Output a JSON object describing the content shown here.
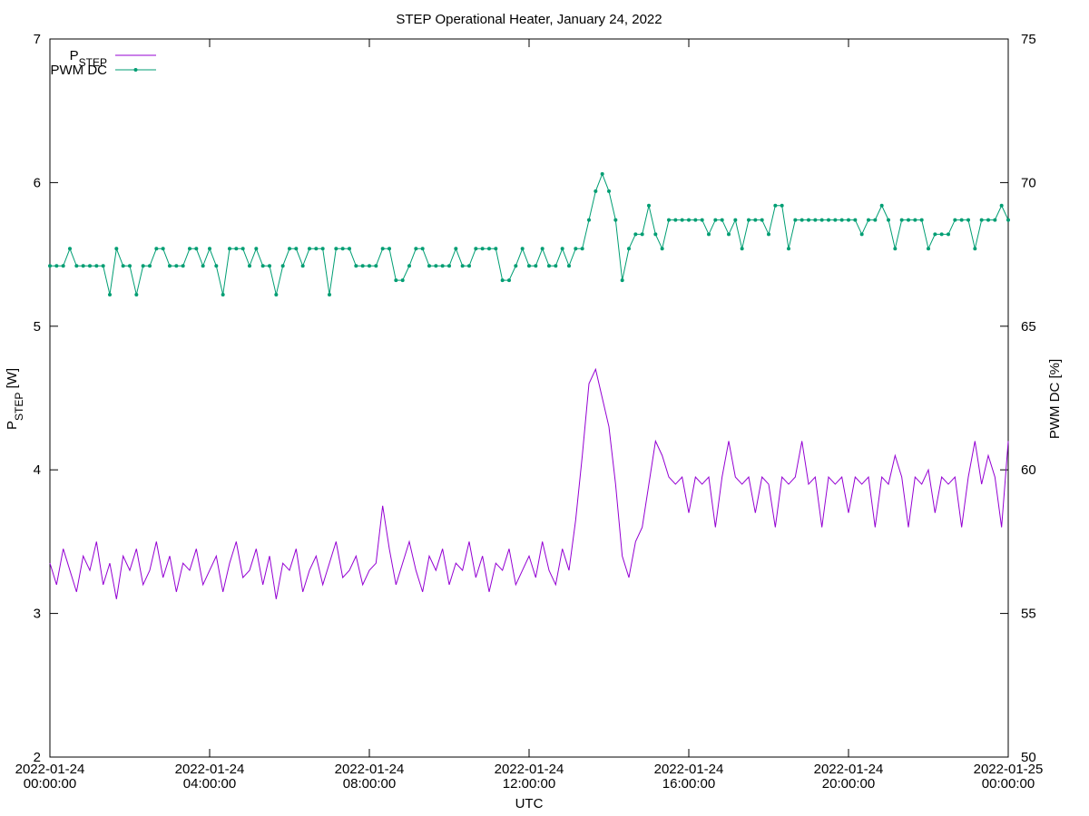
{
  "chart_data": {
    "type": "line",
    "title": "STEP Operational Heater, January 24, 2022",
    "xlabel": "UTC",
    "ylabel": [
      "P",
      "STEP",
      " [W]"
    ],
    "y2label": "PWM DC [%]",
    "x": [
      "2022-01-24 00:00",
      "2022-01-24 00:10",
      "2022-01-24 00:20",
      "2022-01-24 00:30",
      "2022-01-24 00:40",
      "2022-01-24 00:50",
      "2022-01-24 01:00",
      "2022-01-24 01:10",
      "2022-01-24 01:20",
      "2022-01-24 01:30",
      "2022-01-24 01:40",
      "2022-01-24 01:50",
      "2022-01-24 02:00",
      "2022-01-24 02:10",
      "2022-01-24 02:20",
      "2022-01-24 02:30",
      "2022-01-24 02:40",
      "2022-01-24 02:50",
      "2022-01-24 03:00",
      "2022-01-24 03:10",
      "2022-01-24 03:20",
      "2022-01-24 03:30",
      "2022-01-24 03:40",
      "2022-01-24 03:50",
      "2022-01-24 04:00",
      "2022-01-24 04:10",
      "2022-01-24 04:20",
      "2022-01-24 04:30",
      "2022-01-24 04:40",
      "2022-01-24 04:50",
      "2022-01-24 05:00",
      "2022-01-24 05:10",
      "2022-01-24 05:20",
      "2022-01-24 05:30",
      "2022-01-24 05:40",
      "2022-01-24 05:50",
      "2022-01-24 06:00",
      "2022-01-24 06:10",
      "2022-01-24 06:20",
      "2022-01-24 06:30",
      "2022-01-24 06:40",
      "2022-01-24 06:50",
      "2022-01-24 07:00",
      "2022-01-24 07:10",
      "2022-01-24 07:20",
      "2022-01-24 07:30",
      "2022-01-24 07:40",
      "2022-01-24 07:50",
      "2022-01-24 08:00",
      "2022-01-24 08:10",
      "2022-01-24 08:20",
      "2022-01-24 08:30",
      "2022-01-24 08:40",
      "2022-01-24 08:50",
      "2022-01-24 09:00",
      "2022-01-24 09:10",
      "2022-01-24 09:20",
      "2022-01-24 09:30",
      "2022-01-24 09:40",
      "2022-01-24 09:50",
      "2022-01-24 10:00",
      "2022-01-24 10:10",
      "2022-01-24 10:20",
      "2022-01-24 10:30",
      "2022-01-24 10:40",
      "2022-01-24 10:50",
      "2022-01-24 11:00",
      "2022-01-24 11:10",
      "2022-01-24 11:20",
      "2022-01-24 11:30",
      "2022-01-24 11:40",
      "2022-01-24 11:50",
      "2022-01-24 12:00",
      "2022-01-24 12:10",
      "2022-01-24 12:20",
      "2022-01-24 12:30",
      "2022-01-24 12:40",
      "2022-01-24 12:50",
      "2022-01-24 13:00",
      "2022-01-24 13:10",
      "2022-01-24 13:20",
      "2022-01-24 13:30",
      "2022-01-24 13:40",
      "2022-01-24 13:50",
      "2022-01-24 14:00",
      "2022-01-24 14:10",
      "2022-01-24 14:20",
      "2022-01-24 14:30",
      "2022-01-24 14:40",
      "2022-01-24 14:50",
      "2022-01-24 15:00",
      "2022-01-24 15:10",
      "2022-01-24 15:20",
      "2022-01-24 15:30",
      "2022-01-24 15:40",
      "2022-01-24 15:50",
      "2022-01-24 16:00",
      "2022-01-24 16:10",
      "2022-01-24 16:20",
      "2022-01-24 16:30",
      "2022-01-24 16:40",
      "2022-01-24 16:50",
      "2022-01-24 17:00",
      "2022-01-24 17:10",
      "2022-01-24 17:20",
      "2022-01-24 17:30",
      "2022-01-24 17:40",
      "2022-01-24 17:50",
      "2022-01-24 18:00",
      "2022-01-24 18:10",
      "2022-01-24 18:20",
      "2022-01-24 18:30",
      "2022-01-24 18:40",
      "2022-01-24 18:50",
      "2022-01-24 19:00",
      "2022-01-24 19:10",
      "2022-01-24 19:20",
      "2022-01-24 19:30",
      "2022-01-24 19:40",
      "2022-01-24 19:50",
      "2022-01-24 20:00",
      "2022-01-24 20:10",
      "2022-01-24 20:20",
      "2022-01-24 20:30",
      "2022-01-24 20:40",
      "2022-01-24 20:50",
      "2022-01-24 21:00",
      "2022-01-24 21:10",
      "2022-01-24 21:20",
      "2022-01-24 21:30",
      "2022-01-24 21:40",
      "2022-01-24 21:50",
      "2022-01-24 22:00",
      "2022-01-24 22:10",
      "2022-01-24 22:20",
      "2022-01-24 22:30",
      "2022-01-24 22:40",
      "2022-01-24 22:50",
      "2022-01-24 23:00",
      "2022-01-24 23:10",
      "2022-01-24 23:20",
      "2022-01-24 23:30",
      "2022-01-24 23:40",
      "2022-01-24 23:50",
      "2022-01-25 00:00"
    ],
    "series": [
      {
        "name": [
          "P",
          "STEP"
        ],
        "color": "#9400d3",
        "axis": "y",
        "markers": false,
        "values": [
          3.35,
          3.2,
          3.45,
          3.3,
          3.15,
          3.4,
          3.3,
          3.5,
          3.2,
          3.35,
          3.1,
          3.4,
          3.3,
          3.45,
          3.2,
          3.3,
          3.5,
          3.25,
          3.4,
          3.15,
          3.35,
          3.3,
          3.45,
          3.2,
          3.3,
          3.4,
          3.15,
          3.35,
          3.5,
          3.25,
          3.3,
          3.45,
          3.2,
          3.4,
          3.1,
          3.35,
          3.3,
          3.45,
          3.15,
          3.3,
          3.4,
          3.2,
          3.35,
          3.5,
          3.25,
          3.3,
          3.4,
          3.2,
          3.3,
          3.35,
          3.75,
          3.45,
          3.2,
          3.35,
          3.5,
          3.3,
          3.15,
          3.4,
          3.3,
          3.45,
          3.2,
          3.35,
          3.3,
          3.5,
          3.25,
          3.4,
          3.15,
          3.35,
          3.3,
          3.45,
          3.2,
          3.3,
          3.4,
          3.25,
          3.5,
          3.3,
          3.2,
          3.45,
          3.3,
          3.65,
          4.1,
          4.6,
          4.7,
          4.5,
          4.3,
          3.9,
          3.4,
          3.25,
          3.5,
          3.6,
          3.9,
          4.2,
          4.1,
          3.95,
          3.9,
          3.95,
          3.7,
          3.95,
          3.9,
          3.95,
          3.6,
          3.95,
          4.2,
          3.95,
          3.9,
          3.95,
          3.7,
          3.95,
          3.9,
          3.6,
          3.95,
          3.9,
          3.95,
          4.2,
          3.9,
          3.95,
          3.6,
          3.95,
          3.9,
          3.95,
          3.7,
          3.95,
          3.9,
          3.95,
          3.6,
          3.95,
          3.9,
          4.1,
          3.95,
          3.6,
          3.95,
          3.9,
          4.0,
          3.7,
          3.95,
          3.9,
          3.95,
          3.6,
          3.95,
          4.2,
          3.9,
          4.1,
          3.95,
          3.6,
          4.2
        ]
      },
      {
        "name": [
          "PWM DC"
        ],
        "color": "#009e73",
        "axis": "y2",
        "markers": true,
        "values": [
          67.1,
          67.1,
          67.1,
          67.7,
          67.1,
          67.1,
          67.1,
          67.1,
          67.1,
          66.1,
          67.7,
          67.1,
          67.1,
          66.1,
          67.1,
          67.1,
          67.7,
          67.7,
          67.1,
          67.1,
          67.1,
          67.7,
          67.7,
          67.1,
          67.7,
          67.1,
          66.1,
          67.7,
          67.7,
          67.7,
          67.1,
          67.7,
          67.1,
          67.1,
          66.1,
          67.1,
          67.7,
          67.7,
          67.1,
          67.7,
          67.7,
          67.7,
          66.1,
          67.7,
          67.7,
          67.7,
          67.1,
          67.1,
          67.1,
          67.1,
          67.7,
          67.7,
          66.6,
          66.6,
          67.1,
          67.7,
          67.7,
          67.1,
          67.1,
          67.1,
          67.1,
          67.7,
          67.1,
          67.1,
          67.7,
          67.7,
          67.7,
          67.7,
          66.6,
          66.6,
          67.1,
          67.7,
          67.1,
          67.1,
          67.7,
          67.1,
          67.1,
          67.7,
          67.1,
          67.7,
          67.7,
          68.7,
          69.7,
          70.3,
          69.7,
          68.7,
          66.6,
          67.7,
          68.2,
          68.2,
          69.2,
          68.2,
          67.7,
          68.7,
          68.7,
          68.7,
          68.7,
          68.7,
          68.7,
          68.2,
          68.7,
          68.7,
          68.2,
          68.7,
          67.7,
          68.7,
          68.7,
          68.7,
          68.2,
          69.2,
          69.2,
          67.7,
          68.7,
          68.7,
          68.7,
          68.7,
          68.7,
          68.7,
          68.7,
          68.7,
          68.7,
          68.7,
          68.2,
          68.7,
          68.7,
          69.2,
          68.7,
          67.7,
          68.7,
          68.7,
          68.7,
          68.7,
          67.7,
          68.2,
          68.2,
          68.2,
          68.7,
          68.7,
          68.7,
          67.7,
          68.7,
          68.7,
          68.7,
          69.2,
          68.7
        ]
      }
    ],
    "xlim": [
      "2022-01-24 00:00",
      "2022-01-25 00:00"
    ],
    "xticks": [
      {
        "value": "2022-01-24 00:00",
        "label": "2022-01-24 00:00:00"
      },
      {
        "value": "2022-01-24 04:00",
        "label": "2022-01-24 04:00:00"
      },
      {
        "value": "2022-01-24 08:00",
        "label": "2022-01-24 08:00:00"
      },
      {
        "value": "2022-01-24 12:00",
        "label": "2022-01-24 12:00:00"
      },
      {
        "value": "2022-01-24 16:00",
        "label": "2022-01-24 16:00:00"
      },
      {
        "value": "2022-01-24 20:00",
        "label": "2022-01-24 20:00:00"
      },
      {
        "value": "2022-01-25 00:00",
        "label": "2022-01-25 00:00:00"
      }
    ],
    "ylim": [
      2,
      7
    ],
    "yticks": [
      2,
      3,
      4,
      5,
      6,
      7
    ],
    "y2lim": [
      50,
      75
    ],
    "y2ticks": [
      50,
      55,
      60,
      65,
      70,
      75
    ],
    "legend": "top-left",
    "grid": false
  }
}
